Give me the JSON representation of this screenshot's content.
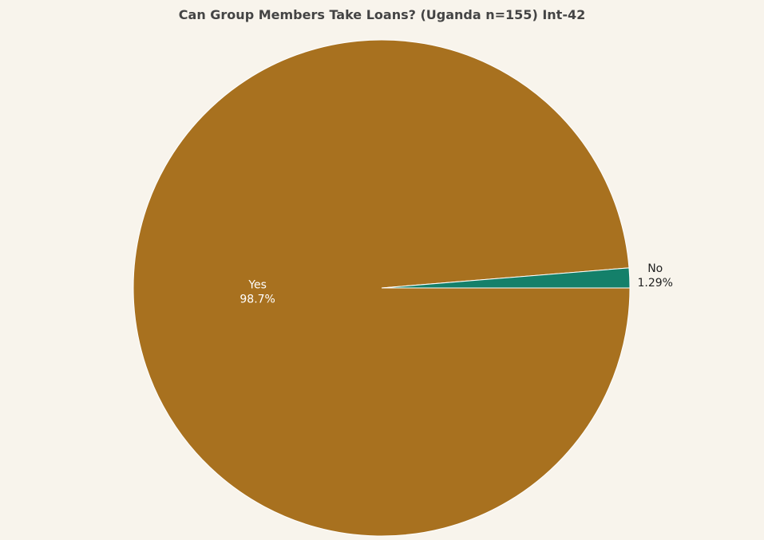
{
  "chart_data": {
    "type": "pie",
    "title": "Can Group Members Take Loans? (Uganda n=155) Int-42",
    "slices": [
      {
        "label": "Yes",
        "percent_text": "98.7%",
        "value": 98.71,
        "color": "#a8711f",
        "label_color": "#ffffff",
        "label_position": "inside"
      },
      {
        "label": "No",
        "percent_text": "1.29%",
        "value": 1.29,
        "color": "#14806a",
        "label_color": "#222222",
        "label_position": "outside"
      }
    ],
    "legend": false
  }
}
